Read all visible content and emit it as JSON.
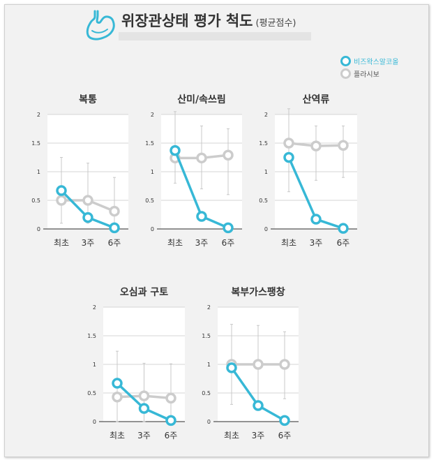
{
  "header": {
    "title": "위장관상태 평가 척도",
    "subtitle": "(평균점수)"
  },
  "legend": [
    {
      "label": "비즈왁스알코올",
      "color": "#37b8d6"
    },
    {
      "label": "플라시보",
      "color": "#cccccc"
    }
  ],
  "chart_data": [
    {
      "type": "line",
      "title": "복통",
      "categories": [
        "최초",
        "3주",
        "6주"
      ],
      "ylim": [
        0,
        2
      ],
      "yticks": [
        "0",
        "0.5",
        "1",
        "1.5",
        "2"
      ],
      "series": [
        {
          "name": "비즈왁스알코올",
          "values": [
            0.67,
            0.2,
            0.02
          ],
          "color": "#37b8d6"
        },
        {
          "name": "플라시보",
          "values": [
            0.5,
            0.5,
            0.31
          ],
          "color": "#cccccc"
        }
      ],
      "error_bars": {
        "low": [
          0.1,
          0.1,
          0.0
        ],
        "high": [
          1.25,
          1.15,
          0.9
        ]
      }
    },
    {
      "type": "line",
      "title": "산미/속쓰림",
      "categories": [
        "최초",
        "3주",
        "6주"
      ],
      "ylim": [
        0,
        2
      ],
      "yticks": [
        "0",
        "0.5",
        "1",
        "1.5",
        "2"
      ],
      "series": [
        {
          "name": "비즈왁스알코올",
          "values": [
            1.37,
            0.22,
            0.02
          ],
          "color": "#37b8d6"
        },
        {
          "name": "플라시보",
          "values": [
            1.24,
            1.24,
            1.29
          ],
          "color": "#cccccc"
        }
      ],
      "error_bars": {
        "low": [
          0.8,
          0.7,
          0.6
        ],
        "high": [
          2.05,
          1.8,
          1.75
        ]
      }
    },
    {
      "type": "line",
      "title": "산역류",
      "categories": [
        "최초",
        "3주",
        "6주"
      ],
      "ylim": [
        0,
        2
      ],
      "yticks": [
        "0",
        "0.5",
        "1",
        "1.5",
        "2"
      ],
      "series": [
        {
          "name": "비즈왁스알코올",
          "values": [
            1.25,
            0.17,
            0.01
          ],
          "color": "#37b8d6"
        },
        {
          "name": "플라시보",
          "values": [
            1.5,
            1.45,
            1.46
          ],
          "color": "#cccccc"
        }
      ],
      "error_bars": {
        "low": [
          0.65,
          0.85,
          0.9
        ],
        "high": [
          2.1,
          1.8,
          1.8
        ]
      }
    },
    {
      "type": "line",
      "title": "오심과 구토",
      "categories": [
        "최초",
        "3주",
        "6주"
      ],
      "ylim": [
        0,
        2
      ],
      "yticks": [
        "0",
        "0.5",
        "1",
        "1.5",
        "2"
      ],
      "series": [
        {
          "name": "비즈왁스알코올",
          "values": [
            0.67,
            0.23,
            0.02
          ],
          "color": "#37b8d6"
        },
        {
          "name": "플라시보",
          "values": [
            0.43,
            0.45,
            0.41
          ],
          "color": "#cccccc"
        }
      ],
      "error_bars": {
        "low": [
          0.0,
          0.0,
          0.0
        ],
        "high": [
          1.23,
          1.02,
          1.01
        ]
      }
    },
    {
      "type": "line",
      "title": "복부가스팽창",
      "categories": [
        "최초",
        "3주",
        "6주"
      ],
      "ylim": [
        0,
        2
      ],
      "yticks": [
        "0",
        "0.5",
        "1",
        "1.5",
        "2"
      ],
      "series": [
        {
          "name": "비즈왁스알코올",
          "values": [
            0.94,
            0.28,
            0.02
          ],
          "color": "#37b8d6"
        },
        {
          "name": "플라시보",
          "values": [
            1.0,
            1.0,
            1.0
          ],
          "color": "#cccccc"
        }
      ],
      "error_bars": {
        "low": [
          0.3,
          0.35,
          0.4
        ],
        "high": [
          1.7,
          1.68,
          1.57
        ]
      }
    }
  ]
}
